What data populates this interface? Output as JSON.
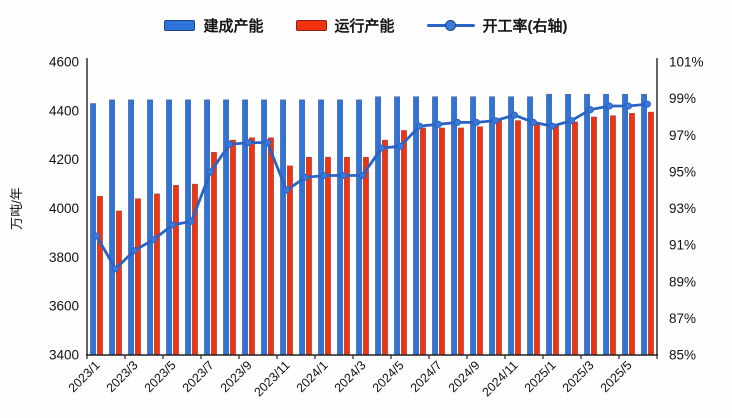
{
  "legend": [
    {
      "id": "built",
      "label": "建成产能",
      "type": "bar",
      "color": "#2e74d9",
      "border": "#1d3f86"
    },
    {
      "id": "running",
      "label": "运行产能",
      "type": "bar",
      "color": "#f23310",
      "border": "#8f1d05"
    },
    {
      "id": "rate",
      "label": "开工率(右轴)",
      "type": "line",
      "color": "#2a63c4",
      "marker_color": "#3b7ad9"
    }
  ],
  "chart_data": {
    "type": "bar",
    "subtype": "dual-axis bar + line combo",
    "title": "",
    "xlabel": "",
    "ylabel_left": "万吨/年",
    "grid": false,
    "legend_position": "top-center",
    "categories": [
      "2023/1",
      "2023/2",
      "2023/3",
      "2023/4",
      "2023/5",
      "2023/6",
      "2023/7",
      "2023/8",
      "2023/9",
      "2023/10",
      "2023/11",
      "2023/12",
      "2024/1",
      "2024/2",
      "2024/3",
      "2024/4",
      "2024/5",
      "2024/6",
      "2024/7",
      "2024/8",
      "2024/9",
      "2024/10",
      "2024/11",
      "2024/12",
      "2025/1",
      "2025/2",
      "2025/3",
      "2025/4",
      "2025/5",
      "2025/6"
    ],
    "x_tick_labels": [
      "2023/1",
      "2023/3",
      "2023/5",
      "2023/7",
      "2023/9",
      "2023/11",
      "2024/1",
      "2024/3",
      "2024/5",
      "2024/7",
      "2024/9",
      "2024/11",
      "2025/1",
      "2025/3",
      "2025/5"
    ],
    "left_axis": {
      "min": 3400,
      "max": 4600,
      "step": 200,
      "ticks": [
        3400,
        3600,
        3800,
        4000,
        4200,
        4400,
        4600
      ],
      "title": "万吨/年"
    },
    "right_axis": {
      "min": 85,
      "max": 101,
      "step": 2,
      "ticks": [
        85,
        87,
        89,
        91,
        93,
        95,
        97,
        99,
        101
      ],
      "suffix": "%"
    },
    "series": [
      {
        "name": "建成产能",
        "type": "bar",
        "axis": "left",
        "color": "#2e74d9",
        "values": [
          4430,
          4445,
          4445,
          4445,
          4445,
          4445,
          4445,
          4445,
          4445,
          4445,
          4445,
          4445,
          4445,
          4445,
          4445,
          4458,
          4458,
          4458,
          4458,
          4458,
          4458,
          4458,
          4458,
          4458,
          4468,
          4468,
          4468,
          4468,
          4468,
          4468
        ]
      },
      {
        "name": "运行产能",
        "type": "bar",
        "axis": "left",
        "color": "#f23310",
        "values": [
          4050,
          3990,
          4040,
          4060,
          4095,
          4100,
          4230,
          4280,
          4290,
          4290,
          4175,
          4210,
          4210,
          4210,
          4210,
          4280,
          4320,
          4330,
          4330,
          4330,
          4335,
          4360,
          4360,
          4350,
          4345,
          4355,
          4375,
          4380,
          4390,
          4395
        ]
      },
      {
        "name": "开工率(右轴)",
        "type": "line",
        "axis": "right",
        "color": "#2a63c4",
        "values": [
          91.5,
          89.7,
          90.7,
          91.3,
          92.1,
          92.3,
          95.0,
          96.5,
          96.6,
          96.6,
          94.0,
          94.7,
          94.8,
          94.8,
          94.8,
          96.3,
          96.4,
          97.5,
          97.6,
          97.7,
          97.7,
          97.8,
          98.1,
          97.7,
          97.5,
          97.8,
          98.4,
          98.6,
          98.6,
          98.7
        ]
      }
    ]
  }
}
